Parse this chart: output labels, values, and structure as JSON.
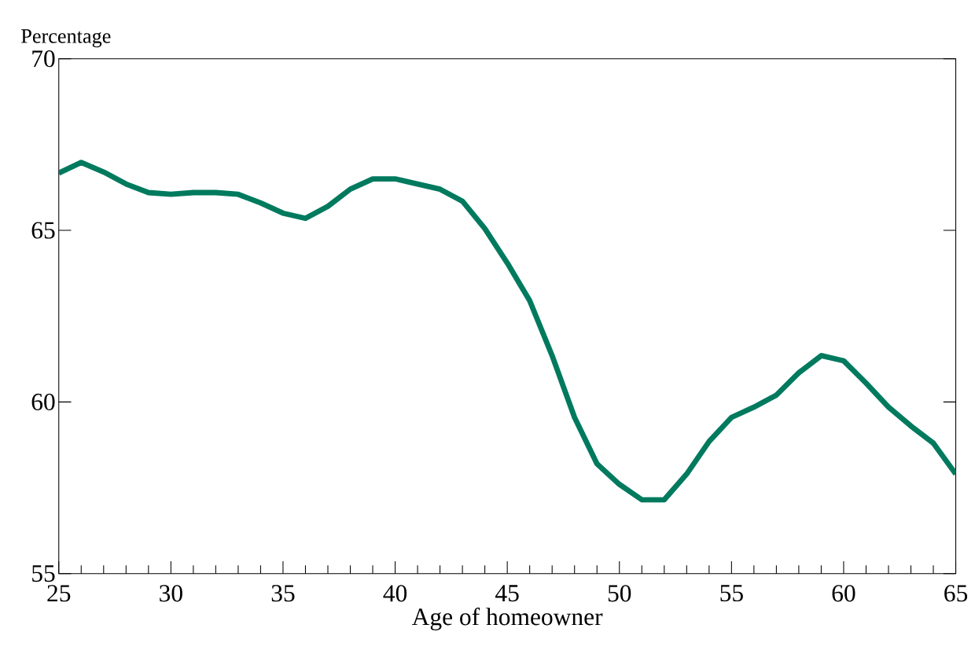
{
  "chart_data": {
    "type": "line",
    "xlabel": "Age of homeowner",
    "ylabel": "Percentage",
    "x": [
      25,
      26,
      27,
      28,
      29,
      30,
      31,
      32,
      33,
      34,
      35,
      36,
      37,
      38,
      39,
      40,
      41,
      42,
      43,
      44,
      45,
      46,
      47,
      48,
      49,
      50,
      51,
      52,
      53,
      54,
      55,
      56,
      57,
      58,
      59,
      60,
      61,
      62,
      63,
      64,
      65
    ],
    "series": [
      {
        "color": "#007a5e",
        "values": [
          66.67,
          66.98,
          66.7,
          66.35,
          66.1,
          66.05,
          66.1,
          66.1,
          66.05,
          65.8,
          65.5,
          65.35,
          65.7,
          66.2,
          66.5,
          66.5,
          66.35,
          66.2,
          65.85,
          65.05,
          64.05,
          62.95,
          61.35,
          59.55,
          58.2,
          57.6,
          57.15,
          57.15,
          57.9,
          58.85,
          59.55,
          59.85,
          60.2,
          60.85,
          61.35,
          61.2,
          60.55,
          59.85,
          59.3,
          58.8,
          57.9
        ]
      }
    ],
    "xlim": [
      25,
      65
    ],
    "ylim": [
      55,
      70
    ],
    "xticks": [
      25,
      30,
      35,
      40,
      45,
      50,
      55,
      60,
      65
    ],
    "yticks": [
      55,
      60,
      65,
      70
    ],
    "grid": false,
    "marker": "none",
    "line_style": "solid"
  }
}
